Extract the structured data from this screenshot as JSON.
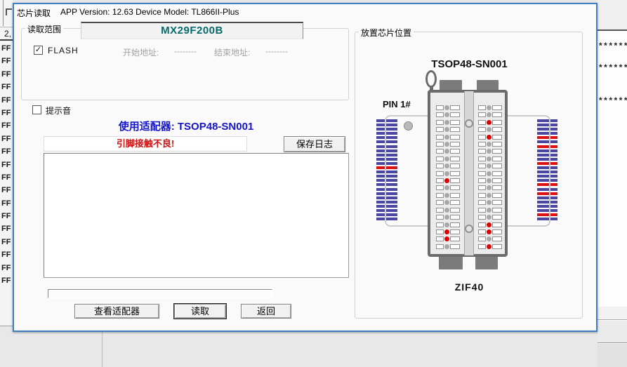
{
  "window": {
    "title": "芯片读取",
    "app_info": "APP Version: 12.63 Device Model: TL866II-Plus"
  },
  "read_range": {
    "label": "读取范围",
    "chip_name": "MX29F200B",
    "flash": {
      "label": "FLASH",
      "checked": true
    },
    "start_address": {
      "label": "开始地址:",
      "value": "--------"
    },
    "end_address": {
      "label": "结束地址:",
      "value": "--------"
    }
  },
  "beep": {
    "label": "提示音",
    "checked": false
  },
  "adapter_notice": "使用适配器: TSOP48-SN001",
  "status_message": "引脚接触不良!",
  "log": {
    "save_button": "保存日志",
    "content": "",
    "progress_percent": 0
  },
  "actions": {
    "view_adapter": "查看适配器",
    "read": "读取",
    "back": "返回"
  },
  "placement": {
    "label": "放置芯片位置",
    "adapter_title": "TSOP48-SN001",
    "pin1_label": "PIN 1#",
    "socket_label": "ZIF40",
    "left_pin_dots": [
      "gray",
      "gray",
      "gray",
      "gray",
      "gray",
      "gray",
      "gray",
      "gray",
      "gray",
      "gray",
      "red",
      "gray",
      "gray",
      "gray",
      "gray",
      "gray",
      "gray",
      "red",
      "red",
      "gray"
    ],
    "right_pin_dots": [
      "gray",
      "gray",
      "red",
      "gray",
      "red",
      "gray",
      "gray",
      "gray",
      "gray",
      "gray",
      "gray",
      "gray",
      "gray",
      "gray",
      "gray",
      "gray",
      "red",
      "red",
      "gray",
      "red"
    ],
    "left_bars": [
      "blue",
      "blue",
      "blue",
      "blue",
      "blue",
      "blue",
      "blue",
      "blue",
      "blue",
      "blue",
      "blue",
      "red",
      "blue",
      "blue",
      "blue",
      "blue",
      "blue",
      "blue",
      "blue",
      "blue",
      "blue",
      "blue",
      "blue",
      "blue"
    ],
    "right_bars": [
      "blue",
      "blue",
      "blue",
      "blue",
      "red",
      "blue",
      "red",
      "blue",
      "blue",
      "blue",
      "red",
      "blue",
      "blue",
      "blue",
      "blue",
      "red",
      "blue",
      "red",
      "blue",
      "blue",
      "blue",
      "blue",
      "red",
      "blue"
    ]
  },
  "background": {
    "address_header": "2,",
    "hex_rows": [
      "FF",
      "FF",
      "FF",
      "FF",
      "FF",
      "FF",
      "FF",
      "FF",
      "FF",
      "FF",
      "FF",
      "FF",
      "FF",
      "FF",
      "FF",
      "FF",
      "FF",
      "FF",
      "FF"
    ],
    "star_rows": [
      "*******",
      "*******",
      "*******"
    ]
  },
  "colors": {
    "dialog_border": "#3f7fc1",
    "chip_name": "#066a6a",
    "adapter_text": "#1515cc",
    "error_text": "#cc1111",
    "bar_blue": "#4a47a3",
    "bar_red": "#dd1111",
    "dot_gray": "#a8a8a8",
    "dot_red": "#e00000",
    "disabled_text": "#a3a3a3"
  }
}
